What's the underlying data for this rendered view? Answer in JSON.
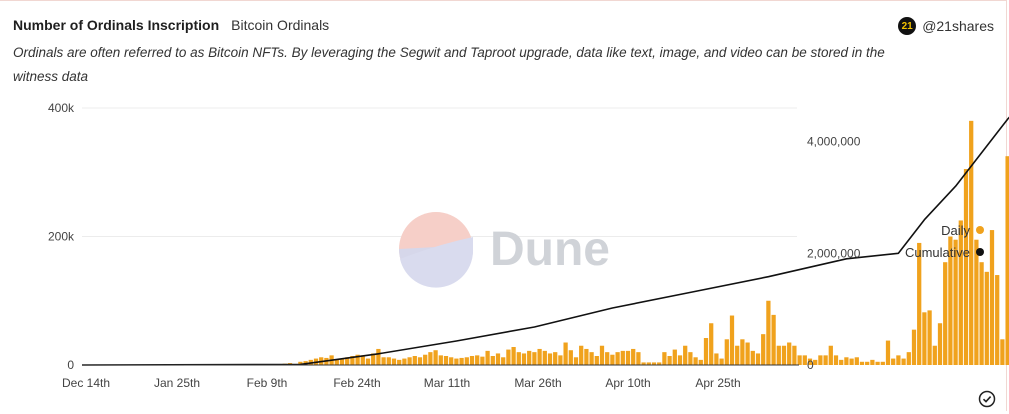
{
  "header": {
    "title": "Number of Ordinals Inscription",
    "subtitle": "Bitcoin Ordinals",
    "description": "Ordinals are often referred to as Bitcoin NFTs. By leveraging the Segwit and Taproot upgrade, data like text, image, and video can be stored in the witness data"
  },
  "brand": {
    "logo_text": "21",
    "handle": "@21shares",
    "icon": "21shares-logo-icon"
  },
  "watermark": {
    "text": "Dune",
    "icon": "dune-logo-icon"
  },
  "footer": {
    "icon": "check-circle-icon"
  },
  "colors": {
    "daily": "#f0a21d",
    "cumulative": "#111111",
    "grid": "#ececec",
    "axis": "#333333"
  },
  "chart_data": {
    "type": "bar",
    "x_start": "Dec 14th",
    "x_tick_labels": [
      "Dec 14th",
      "Jan 25th",
      "Feb 9th",
      "Feb 24th",
      "Mar 11th",
      "Mar 26th",
      "Apr 10th",
      "Apr 25th"
    ],
    "y_left_ticks": [
      "0",
      "200k",
      "400k"
    ],
    "y_left_lim": [
      0,
      400000
    ],
    "y_right_ticks": [
      "0",
      "2,000,000",
      "4,000,000"
    ],
    "y_right_lim": [
      0,
      4600000
    ],
    "grid": true,
    "legend_position": "right",
    "series": [
      {
        "name": "Daily",
        "axis": "left",
        "type": "bar",
        "points": [
          [
            "2023-01-21",
            1000
          ],
          [
            "2023-01-22",
            2000
          ],
          [
            "2023-01-23",
            3000
          ],
          [
            "2023-01-25",
            5000
          ],
          [
            "2023-01-26",
            6000
          ],
          [
            "2023-01-27",
            8000
          ],
          [
            "2023-01-28",
            10000
          ],
          [
            "2023-01-29",
            12000
          ],
          [
            "2023-01-30",
            11000
          ],
          [
            "2023-01-31",
            15000
          ],
          [
            "2023-02-01",
            8000
          ],
          [
            "2023-02-02",
            10000
          ],
          [
            "2023-02-03",
            12000
          ],
          [
            "2023-02-04",
            14000
          ],
          [
            "2023-02-05",
            16000
          ],
          [
            "2023-02-06",
            15000
          ],
          [
            "2023-02-07",
            10000
          ],
          [
            "2023-02-08",
            18000
          ],
          [
            "2023-02-09",
            25000
          ],
          [
            "2023-02-10",
            12000
          ],
          [
            "2023-02-11",
            12000
          ],
          [
            "2023-02-12",
            10000
          ],
          [
            "2023-02-13",
            8000
          ],
          [
            "2023-02-14",
            10000
          ],
          [
            "2023-02-15",
            12000
          ],
          [
            "2023-02-16",
            14000
          ],
          [
            "2023-02-17",
            12000
          ],
          [
            "2023-02-18",
            16000
          ],
          [
            "2023-02-19",
            20000
          ],
          [
            "2023-02-20",
            23000
          ],
          [
            "2023-02-21",
            15000
          ],
          [
            "2023-02-22",
            14000
          ],
          [
            "2023-02-23",
            12000
          ],
          [
            "2023-02-24",
            10000
          ],
          [
            "2023-02-25",
            11000
          ],
          [
            "2023-02-26",
            12000
          ],
          [
            "2023-02-27",
            14000
          ],
          [
            "2023-02-28",
            15000
          ],
          [
            "2023-03-01",
            13000
          ],
          [
            "2023-03-02",
            22000
          ],
          [
            "2023-03-03",
            14000
          ],
          [
            "2023-03-04",
            18000
          ],
          [
            "2023-03-05",
            12000
          ],
          [
            "2023-03-06",
            24000
          ],
          [
            "2023-03-07",
            28000
          ],
          [
            "2023-03-08",
            20000
          ],
          [
            "2023-03-09",
            18000
          ],
          [
            "2023-03-10",
            22000
          ],
          [
            "2023-03-11",
            20000
          ],
          [
            "2023-03-12",
            25000
          ],
          [
            "2023-03-13",
            22000
          ],
          [
            "2023-03-14",
            18000
          ],
          [
            "2023-03-15",
            20000
          ],
          [
            "2023-03-16",
            15000
          ],
          [
            "2023-03-17",
            35000
          ],
          [
            "2023-03-18",
            23000
          ],
          [
            "2023-03-19",
            12000
          ],
          [
            "2023-03-20",
            30000
          ],
          [
            "2023-03-21",
            25000
          ],
          [
            "2023-03-22",
            20000
          ],
          [
            "2023-03-23",
            14000
          ],
          [
            "2023-03-24",
            30000
          ],
          [
            "2023-03-25",
            20000
          ],
          [
            "2023-03-26",
            16000
          ],
          [
            "2023-03-27",
            20000
          ],
          [
            "2023-03-28",
            22000
          ],
          [
            "2023-03-29",
            22000
          ],
          [
            "2023-03-30",
            25000
          ],
          [
            "2023-03-31",
            20000
          ],
          [
            "2023-04-01",
            4000
          ],
          [
            "2023-04-02",
            4000
          ],
          [
            "2023-04-03",
            4000
          ],
          [
            "2023-04-04",
            4000
          ],
          [
            "2023-04-05",
            20000
          ],
          [
            "2023-04-06",
            14000
          ],
          [
            "2023-04-07",
            24000
          ],
          [
            "2023-04-08",
            15000
          ],
          [
            "2023-04-09",
            30000
          ],
          [
            "2023-04-10",
            20000
          ],
          [
            "2023-04-11",
            12000
          ],
          [
            "2023-04-12",
            8000
          ],
          [
            "2023-04-13",
            42000
          ],
          [
            "2023-04-14",
            65000
          ],
          [
            "2023-04-15",
            18000
          ],
          [
            "2023-04-16",
            10000
          ],
          [
            "2023-04-17",
            40000
          ],
          [
            "2023-04-18",
            77000
          ],
          [
            "2023-04-19",
            30000
          ],
          [
            "2023-04-20",
            40000
          ],
          [
            "2023-04-21",
            35000
          ],
          [
            "2023-04-22",
            22000
          ],
          [
            "2023-04-23",
            18000
          ],
          [
            "2023-04-24",
            48000
          ],
          [
            "2023-04-25",
            100000
          ],
          [
            "2023-04-26",
            78000
          ],
          [
            "2023-04-27",
            30000
          ],
          [
            "2023-04-28",
            30000
          ],
          [
            "2023-04-29",
            35000
          ],
          [
            "2023-04-30",
            30000
          ],
          [
            "2023-05-01",
            15000
          ],
          [
            "2023-05-02",
            15000
          ],
          [
            "2023-05-03",
            10000
          ],
          [
            "2023-05-04",
            8000
          ],
          [
            "2023-05-05",
            15000
          ],
          [
            "2023-05-06",
            15000
          ],
          [
            "2023-05-07",
            30000
          ],
          [
            "2023-05-08",
            15000
          ],
          [
            "2023-05-09",
            8000
          ],
          [
            "2023-05-10",
            12000
          ],
          [
            "2023-05-11",
            10000
          ],
          [
            "2023-05-12",
            12000
          ],
          [
            "2023-05-13",
            5000
          ],
          [
            "2023-05-14",
            5000
          ],
          [
            "2023-05-15",
            8000
          ],
          [
            "2023-05-16",
            5000
          ],
          [
            "2023-05-17",
            5000
          ],
          [
            "2023-05-18",
            38000
          ],
          [
            "2023-05-19",
            10000
          ],
          [
            "2023-05-20",
            15000
          ],
          [
            "2023-05-21",
            10000
          ],
          [
            "2023-05-22",
            20000
          ],
          [
            "2023-05-23",
            55000
          ],
          [
            "2023-05-24",
            190000
          ],
          [
            "2023-05-25",
            82000
          ],
          [
            "2023-05-26",
            85000
          ],
          [
            "2023-05-27",
            30000
          ],
          [
            "2023-05-28",
            65000
          ],
          [
            "2023-05-29",
            160000
          ],
          [
            "2023-05-30",
            200000
          ],
          [
            "2023-05-31",
            195000
          ],
          [
            "2023-06-01",
            225000
          ],
          [
            "2023-06-02",
            305000
          ],
          [
            "2023-06-03",
            380000
          ],
          [
            "2023-06-04",
            195000
          ],
          [
            "2023-06-05",
            160000
          ],
          [
            "2023-06-06",
            145000
          ],
          [
            "2023-06-07",
            210000
          ],
          [
            "2023-06-08",
            140000
          ],
          [
            "2023-06-09",
            40000
          ],
          [
            "2023-06-10",
            325000
          ],
          [
            "2023-06-11",
            400000
          ],
          [
            "2023-06-12",
            140000
          ]
        ]
      },
      {
        "name": "Cumulative",
        "axis": "right",
        "type": "line",
        "points": [
          [
            "2022-12-14",
            0
          ],
          [
            "2023-01-25",
            10000
          ],
          [
            "2023-02-09",
            200000
          ],
          [
            "2023-02-24",
            430000
          ],
          [
            "2023-03-11",
            680000
          ],
          [
            "2023-03-26",
            1020000
          ],
          [
            "2023-04-10",
            1300000
          ],
          [
            "2023-04-25",
            1580000
          ],
          [
            "2023-05-10",
            1900000
          ],
          [
            "2023-05-20",
            2000000
          ],
          [
            "2023-05-25",
            2600000
          ],
          [
            "2023-05-31",
            3200000
          ],
          [
            "2023-06-05",
            3800000
          ],
          [
            "2023-06-10",
            4400000
          ],
          [
            "2023-06-12",
            4600000
          ]
        ]
      }
    ]
  }
}
